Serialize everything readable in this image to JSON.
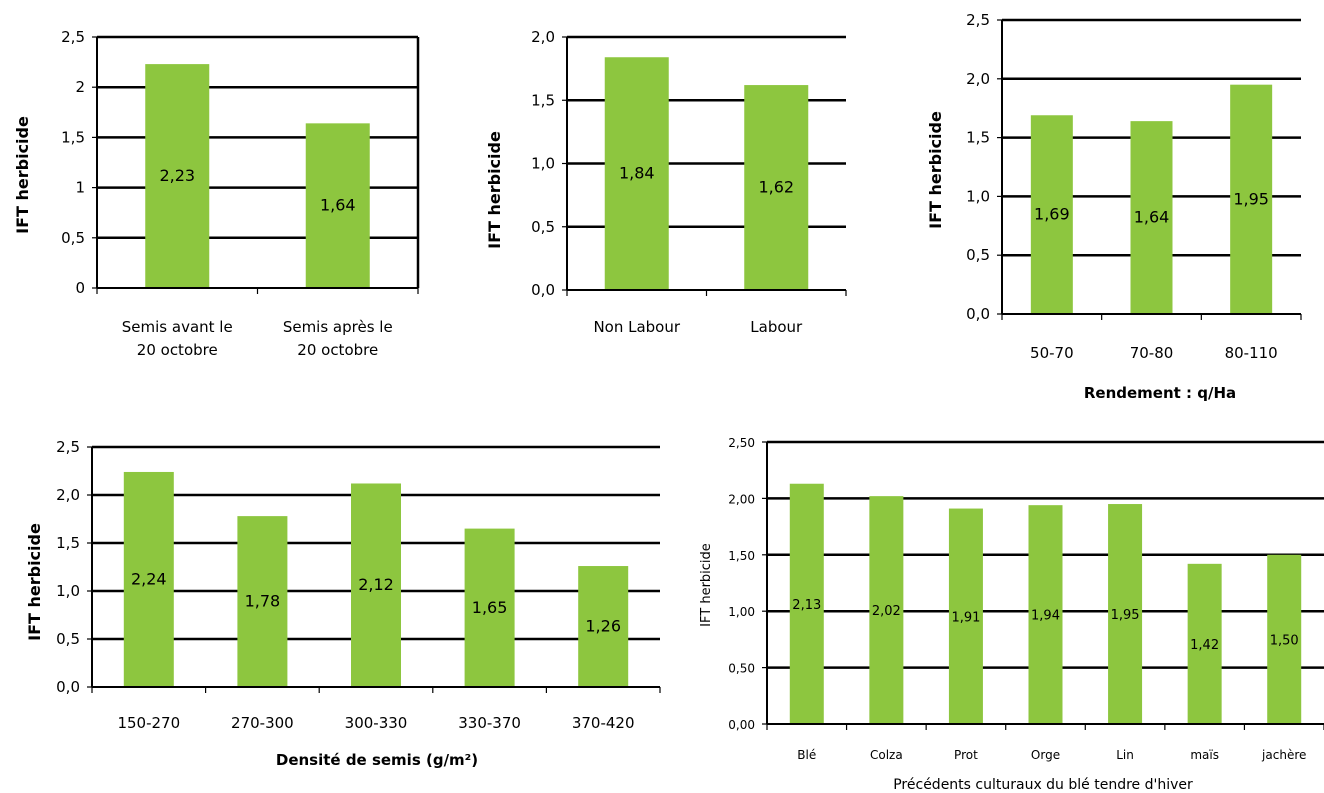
{
  "colors": {
    "bar": "#8dc63f",
    "grid": "#000000",
    "text": "#000000"
  },
  "chart_data": [
    {
      "type": "bar",
      "categories": [
        [
          "Semis avant le",
          "20 octobre"
        ],
        [
          "Semis après le",
          "20 octobre"
        ]
      ],
      "values": [
        2.23,
        1.64
      ],
      "value_labels": [
        "2,23",
        "1,64"
      ],
      "title": "",
      "ylabel": "IFT herbicide",
      "xlabel": "",
      "ylim": [
        0,
        2.5
      ],
      "yticks": [
        "0",
        "0,5",
        "1",
        "1,5",
        "2",
        "2,5"
      ],
      "grid": true,
      "frame": true
    },
    {
      "type": "bar",
      "categories": [
        [
          "Non Labour"
        ],
        [
          "Labour"
        ]
      ],
      "values": [
        1.84,
        1.62
      ],
      "value_labels": [
        "1,84",
        "1,62"
      ],
      "title": "",
      "ylabel": "IFT herbicide",
      "xlabel": "",
      "ylim": [
        0,
        2.0
      ],
      "yticks": [
        "0,0",
        "0,5",
        "1,0",
        "1,5",
        "2,0"
      ],
      "grid": true,
      "frame": false
    },
    {
      "type": "bar",
      "categories": [
        [
          "50-70"
        ],
        [
          "70-80"
        ],
        [
          "80-110"
        ]
      ],
      "values": [
        1.69,
        1.64,
        1.95
      ],
      "value_labels": [
        "1,69",
        "1,64",
        "1,95"
      ],
      "title": "",
      "ylabel": "IFT herbicide",
      "xlabel": "Rendement : q/Ha",
      "ylim": [
        0,
        2.5
      ],
      "yticks": [
        "0,0",
        "0,5",
        "1,0",
        "1,5",
        "2,0",
        "2,5"
      ],
      "grid": true,
      "frame": false
    },
    {
      "type": "bar",
      "categories": [
        [
          "150-270"
        ],
        [
          "270-300"
        ],
        [
          "300-330"
        ],
        [
          "330-370"
        ],
        [
          "370-420"
        ]
      ],
      "values": [
        2.24,
        1.78,
        2.12,
        1.65,
        1.26
      ],
      "value_labels": [
        "2,24",
        "1,78",
        "2,12",
        "1,65",
        "1,26"
      ],
      "title": "",
      "ylabel": "IFT herbicide",
      "xlabel": "Densité de semis (g/m²)",
      "ylim": [
        0,
        2.5
      ],
      "yticks": [
        "0,0",
        "0,5",
        "1,0",
        "1,5",
        "2,0",
        "2,5"
      ],
      "grid": true,
      "frame": false
    },
    {
      "type": "bar",
      "categories": [
        [
          "Blé"
        ],
        [
          "Colza"
        ],
        [
          "Prot"
        ],
        [
          "Orge"
        ],
        [
          "Lin"
        ],
        [
          "maïs"
        ],
        [
          "jachère"
        ]
      ],
      "values": [
        2.13,
        2.02,
        1.91,
        1.94,
        1.95,
        1.42,
        1.5
      ],
      "value_labels": [
        "2,13",
        "2,02",
        "1,91",
        "1,94",
        "1,95",
        "1,42",
        "1,50"
      ],
      "title": "",
      "ylabel": "IFT herbicide",
      "xlabel": "Précédents culturaux du blé tendre d'hiver",
      "ylim": [
        0,
        2.5
      ],
      "yticks": [
        "0,00",
        "0,50",
        "1,00",
        "1,50",
        "2,00",
        "2,50"
      ],
      "grid": true,
      "frame": false
    }
  ]
}
